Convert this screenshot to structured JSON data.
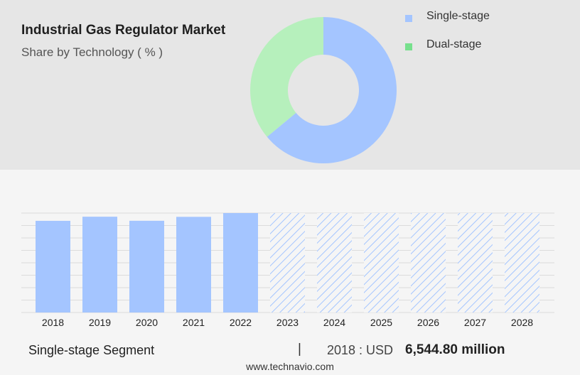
{
  "header": {
    "title": "Industrial Gas Regulator Market",
    "subtitle": "Share by Technology ( % )"
  },
  "legend": [
    {
      "label": "Single-stage",
      "color": "#a4c5ff"
    },
    {
      "label": "Dual-stage",
      "color": "#77e08d"
    }
  ],
  "footer": {
    "segment": "Single-stage Segment",
    "separator": "|",
    "year_label": "2018 : USD",
    "value": "6,544.80 million",
    "source": "www.technavio.com"
  },
  "chart_data": [
    {
      "type": "pie",
      "variant": "donut",
      "title": "Share by Technology ( % )",
      "categories": [
        "Single-stage",
        "Dual-stage"
      ],
      "values": [
        64,
        36
      ],
      "colors": [
        "#a4c5ff",
        "#b6f0bc"
      ]
    },
    {
      "type": "bar",
      "categories": [
        "2018",
        "2019",
        "2020",
        "2021",
        "2022",
        "2023",
        "2024",
        "2025",
        "2026",
        "2027",
        "2028"
      ],
      "values": [
        6544.8,
        6840,
        6550,
        6830,
        7100,
        7100,
        7100,
        7100,
        7100,
        7100,
        7100
      ],
      "forecast_start": "2023",
      "ylim": [
        0,
        7100
      ],
      "grid": true,
      "color": "#a4c5ff"
    }
  ]
}
